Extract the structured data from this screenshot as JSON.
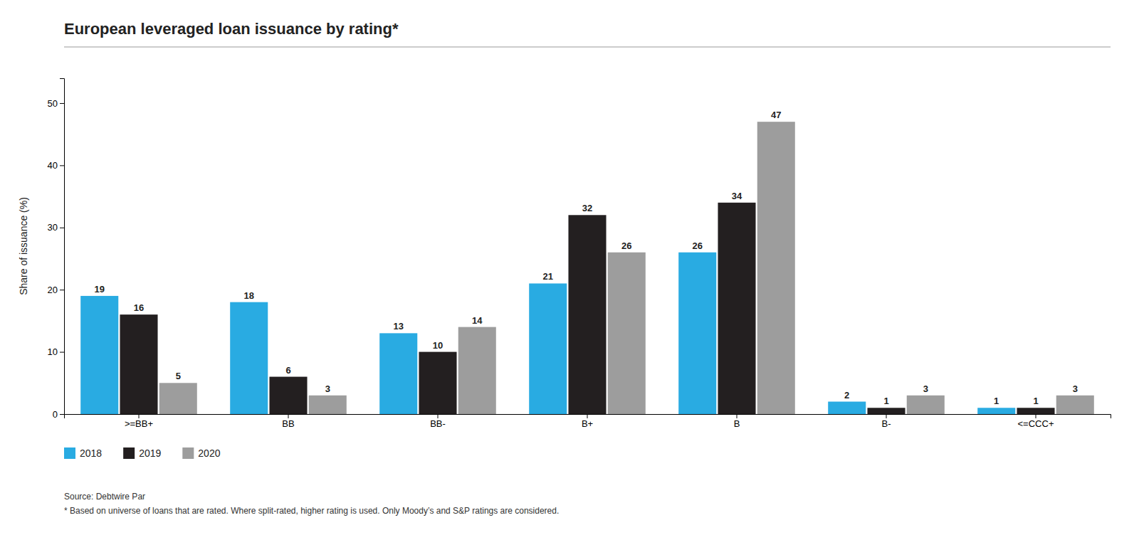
{
  "chart_data": {
    "type": "bar",
    "title": "European leveraged loan issuance by rating*",
    "ylabel": "Share of issuance (%)",
    "categories": [
      ">=BB+",
      "BB",
      "BB-",
      "B+",
      "B",
      "B-",
      "<=CCC+"
    ],
    "series": [
      {
        "name": "2018",
        "color": "#29abe2",
        "values": [
          19,
          18,
          13,
          21,
          26,
          2,
          1
        ]
      },
      {
        "name": "2019",
        "color": "#231f20",
        "values": [
          16,
          6,
          10,
          32,
          34,
          1,
          1
        ]
      },
      {
        "name": "2020",
        "color": "#9d9d9d",
        "values": [
          5,
          3,
          14,
          26,
          47,
          3,
          3
        ]
      }
    ],
    "ylim": [
      0,
      54
    ],
    "yticks": [
      0,
      10,
      20,
      30,
      40,
      50
    ],
    "grid": false,
    "legend": "bottom",
    "data_labels": true,
    "annotations": [
      "Source: Debtwire Par",
      "* Based on universe of loans that are rated. Where split-rated, higher rating is used. Only Moody’s and S&P ratings are considered."
    ]
  }
}
